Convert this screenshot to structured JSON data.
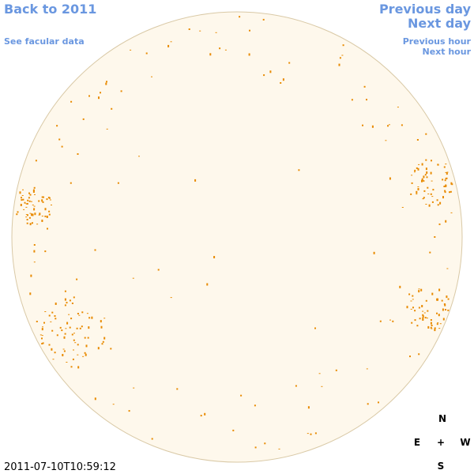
{
  "nav": {
    "back": "Back to 2011",
    "facular": "See facular data",
    "previous_day": "Previous day",
    "next_day": "Next day",
    "previous_hour": "Previous hour",
    "next_hour": "Next hour"
  },
  "compass": {
    "north": "N",
    "east": "E",
    "center": "+",
    "west": "W",
    "south": "S"
  },
  "timestamp": "2011-07-10T10:59:12"
}
